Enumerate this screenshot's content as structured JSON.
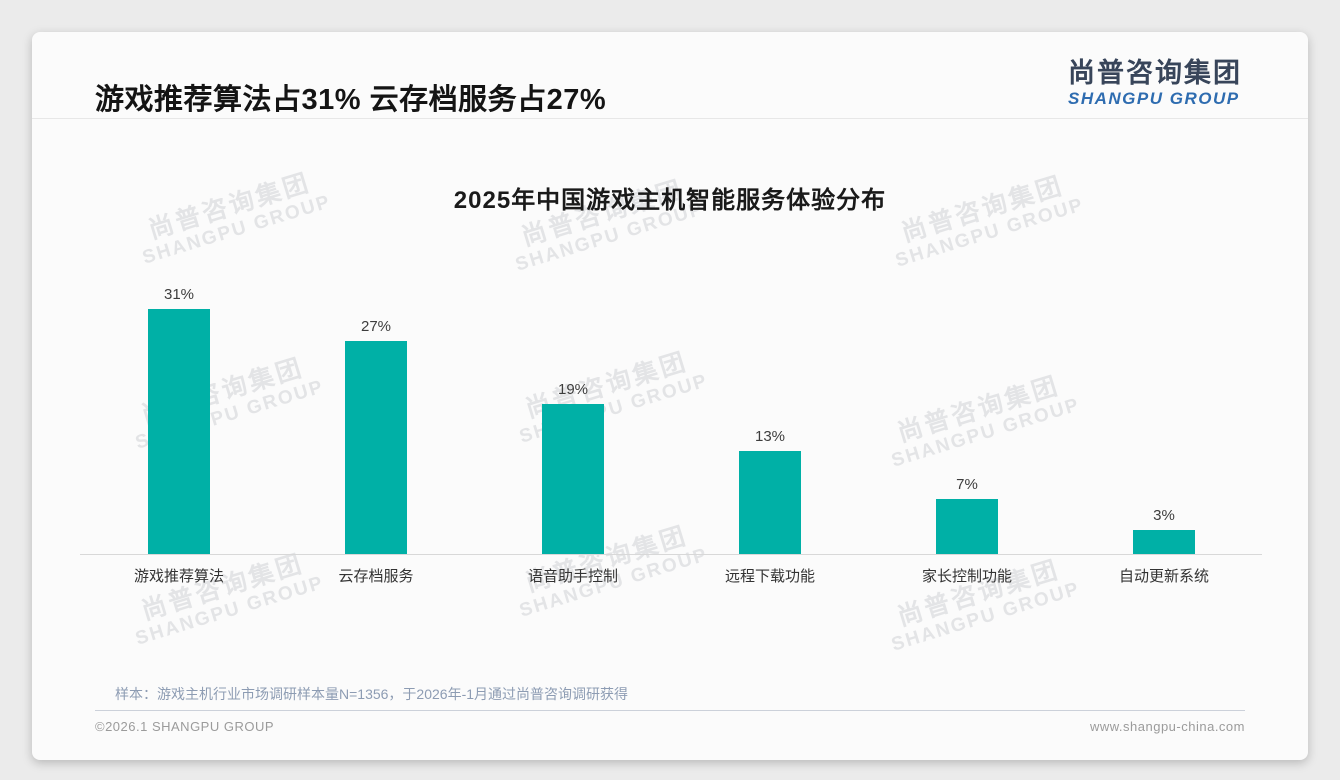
{
  "page": {
    "title": "游戏推荐算法占31% 云存档服务占27%"
  },
  "logo": {
    "cn": "尚普咨询集团",
    "en": "SHANGPU GROUP"
  },
  "watermark": {
    "line1": "尚普咨询集团",
    "line2": "SHANGPU GROUP"
  },
  "chart_data": {
    "type": "bar",
    "title": "2025年中国游戏主机智能服务体验分布",
    "categories": [
      "游戏推荐算法",
      "云存档服务",
      "语音助手控制",
      "远程下载功能",
      "家长控制功能",
      "自动更新系统"
    ],
    "values": [
      31,
      27,
      19,
      13,
      7,
      3
    ],
    "value_labels": [
      "31%",
      "27%",
      "19%",
      "13%",
      "7%",
      "3%"
    ],
    "ylabel": "",
    "xlabel": "",
    "ylim": [
      0,
      35
    ],
    "grid": false,
    "legend": false,
    "bar_color": "#00b0a6"
  },
  "footnote": "样本：游戏主机行业市场调研样本量N=1356，于2026年-1月通过尚普咨询调研获得",
  "footer": {
    "left": "©2026.1 SHANGPU GROUP",
    "right": "www.shangpu-china.com"
  },
  "colors": {
    "bar": "#00b0a6",
    "logo_cn": "#38455a",
    "logo_en": "#2e6cb0",
    "footnote": "#8d9cb3"
  }
}
